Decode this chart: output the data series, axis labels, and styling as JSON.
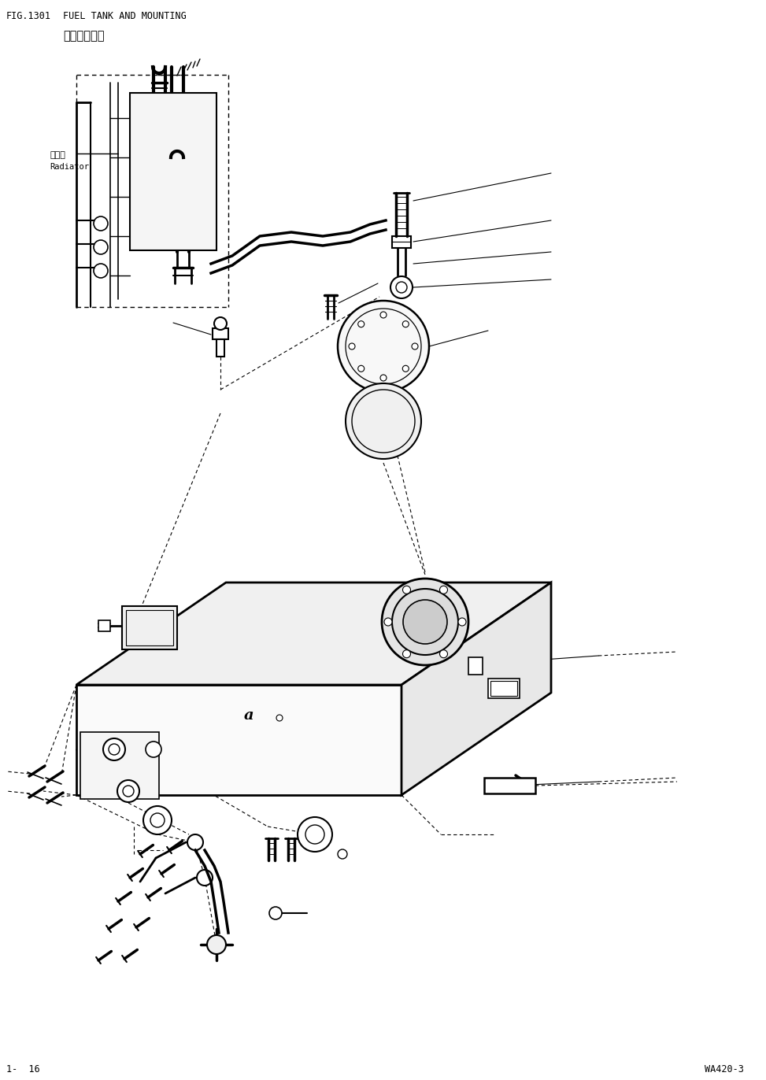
{
  "title_fig": "FIG.1301",
  "title_text": "FUEL TANK AND MOUNTING",
  "title_chinese": "燃油筱及安装",
  "footer_left": "1-  16",
  "footer_right": "WA420-3",
  "radiator_cn": "散热器",
  "radiator_en": "Radiator",
  "label_a": "a",
  "bg": "#ffffff",
  "lc": "#000000",
  "fig_w": 9.73,
  "fig_h": 13.72,
  "dpi": 100
}
